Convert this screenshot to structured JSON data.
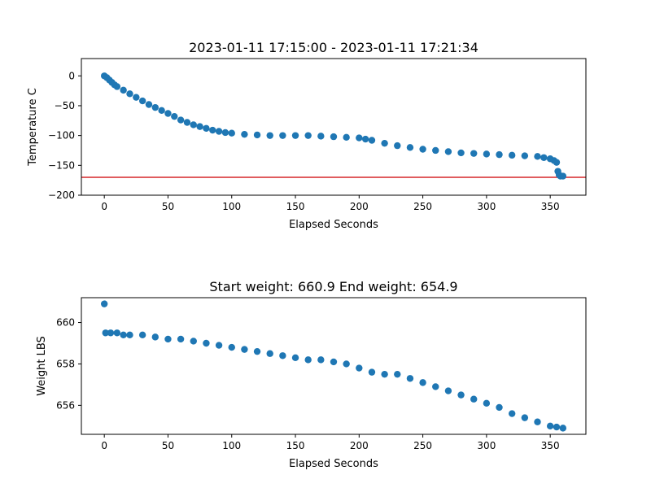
{
  "chart_data": [
    {
      "type": "scatter",
      "title": "2023-01-11 17:15:00 - 2023-01-11 17:21:34",
      "xlabel": "Elapsed Seconds",
      "ylabel": "Temperature C",
      "xlim": [
        -18,
        378
      ],
      "ylim": [
        -200,
        29
      ],
      "xticks": [
        0,
        50,
        100,
        150,
        200,
        250,
        300,
        350
      ],
      "yticks": [
        0,
        -50,
        -100,
        -150,
        -200
      ],
      "grid": false,
      "marker_color": "#1f77b4",
      "reference_line": {
        "y": -170,
        "color": "#d62728"
      },
      "series": [
        {
          "x": [
            0,
            2,
            4,
            6,
            8,
            10,
            15,
            20,
            25,
            30,
            35,
            40,
            45,
            50,
            55,
            60,
            65,
            70,
            75,
            80,
            85,
            90,
            95,
            100,
            110,
            120,
            130,
            140,
            150,
            160,
            170,
            180,
            190,
            200,
            205,
            210,
            220,
            230,
            240,
            250,
            260,
            270,
            280,
            290,
            300,
            310,
            320,
            330,
            340,
            345,
            350,
            353,
            355,
            356,
            357,
            358,
            360
          ],
          "y": [
            0,
            -3,
            -7,
            -11,
            -15,
            -18,
            -24,
            -30,
            -36,
            -42,
            -48,
            -53,
            -58,
            -63,
            -68,
            -74,
            -78,
            -82,
            -85,
            -88,
            -91,
            -93,
            -95,
            -96,
            -98,
            -99,
            -100,
            -100,
            -100,
            -100,
            -101,
            -102,
            -103,
            -104,
            -106,
            -108,
            -113,
            -117,
            -120,
            -123,
            -125,
            -127,
            -129,
            -130,
            -131,
            -132,
            -133,
            -134,
            -135,
            -137,
            -139,
            -142,
            -145,
            -160,
            -166,
            -168,
            -168
          ]
        }
      ]
    },
    {
      "type": "scatter",
      "title": "Start weight: 660.9 End weight: 654.9",
      "xlabel": "Elapsed Seconds",
      "ylabel": "Weight LBS",
      "xlim": [
        -18,
        378
      ],
      "ylim": [
        654.6,
        661.2
      ],
      "xticks": [
        0,
        50,
        100,
        150,
        200,
        250,
        300,
        350
      ],
      "yticks": [
        656,
        658,
        660
      ],
      "grid": false,
      "marker_color": "#1f77b4",
      "series": [
        {
          "x": [
            0,
            1,
            5,
            10,
            15,
            20,
            30,
            40,
            50,
            60,
            70,
            80,
            90,
            100,
            110,
            120,
            130,
            140,
            150,
            160,
            170,
            180,
            190,
            200,
            210,
            220,
            230,
            240,
            250,
            260,
            270,
            280,
            290,
            300,
            310,
            320,
            330,
            340,
            350,
            355,
            360
          ],
          "y": [
            660.9,
            659.5,
            659.5,
            659.5,
            659.4,
            659.4,
            659.4,
            659.3,
            659.2,
            659.2,
            659.1,
            659.0,
            658.9,
            658.8,
            658.7,
            658.6,
            658.5,
            658.4,
            658.3,
            658.2,
            658.2,
            658.1,
            658.0,
            657.8,
            657.6,
            657.5,
            657.5,
            657.3,
            657.1,
            656.9,
            656.7,
            656.5,
            656.3,
            656.1,
            655.9,
            655.6,
            655.4,
            655.2,
            655.0,
            654.95,
            654.9
          ]
        }
      ]
    }
  ]
}
